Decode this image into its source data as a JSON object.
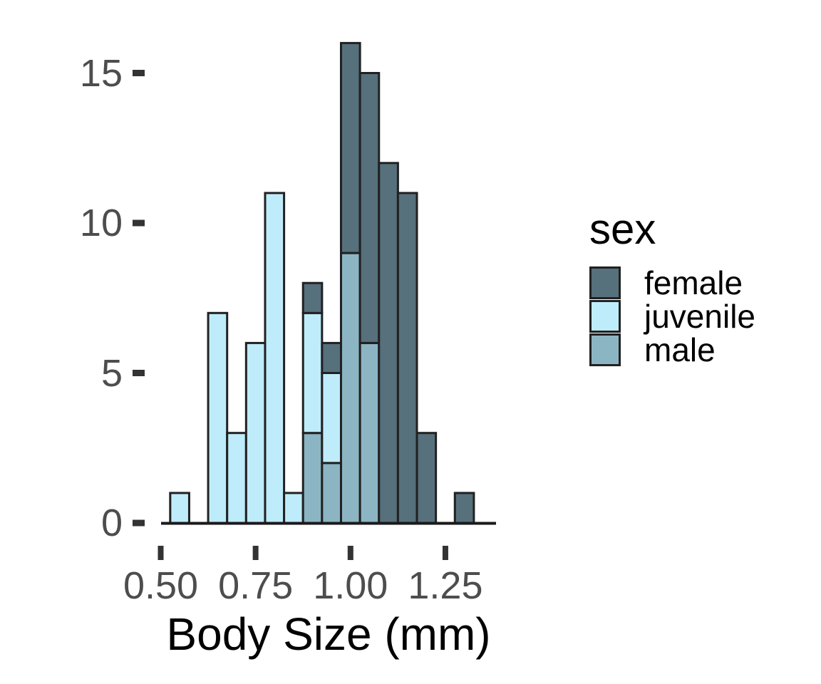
{
  "chart_data": {
    "type": "bar",
    "subtype": "stacked_histogram",
    "title": "",
    "xlabel": "Body Size (mm)",
    "ylabel": "",
    "grid": false,
    "background": "#ffffff",
    "binwidth_mm": 0.05,
    "bin_centers": [
      0.55,
      0.6,
      0.65,
      0.7,
      0.75,
      0.8,
      0.85,
      0.9,
      0.95,
      1.0,
      1.05,
      1.1,
      1.15,
      1.2,
      1.25,
      1.3
    ],
    "series": [
      {
        "name": "female",
        "color": "#56707c",
        "values": [
          0,
          0,
          0,
          0,
          0,
          0,
          0,
          1,
          1,
          7,
          9,
          12,
          11,
          3,
          0,
          1
        ]
      },
      {
        "name": "juvenile",
        "color": "#bfecfb",
        "values": [
          1,
          0,
          7,
          3,
          6,
          11,
          1,
          4,
          3,
          0,
          0,
          0,
          0,
          0,
          0,
          0
        ]
      },
      {
        "name": "male",
        "color": "#8cb5c4",
        "values": [
          0,
          0,
          0,
          0,
          0,
          0,
          0,
          3,
          2,
          9,
          6,
          0,
          0,
          0,
          0,
          0
        ]
      }
    ],
    "stack_order_bottom_to_top": [
      "male",
      "juvenile",
      "female"
    ],
    "x_ticks": [
      {
        "value": 0.5,
        "label": "0.50"
      },
      {
        "value": 0.75,
        "label": "0.75"
      },
      {
        "value": 1.0,
        "label": "1.00"
      },
      {
        "value": 1.25,
        "label": "1.25"
      }
    ],
    "y_ticks": [
      {
        "value": 0,
        "label": "0"
      },
      {
        "value": 5,
        "label": "5"
      },
      {
        "value": 10,
        "label": "10"
      },
      {
        "value": 15,
        "label": "15"
      }
    ],
    "xlim": [
      0.485,
      1.38
    ],
    "ylim": [
      0,
      16.8
    ],
    "legend": {
      "title": "sex",
      "position": "right",
      "entries": [
        "female",
        "juvenile",
        "male"
      ]
    }
  },
  "styles": {
    "bar_border_color": "#212121",
    "axis_line_color": "#1a1a1a",
    "tick_mark_color": "#333333",
    "tick_label_color": "#4d4d4d",
    "axis_title_color": "#000000",
    "legend_text_color": "#000000"
  }
}
